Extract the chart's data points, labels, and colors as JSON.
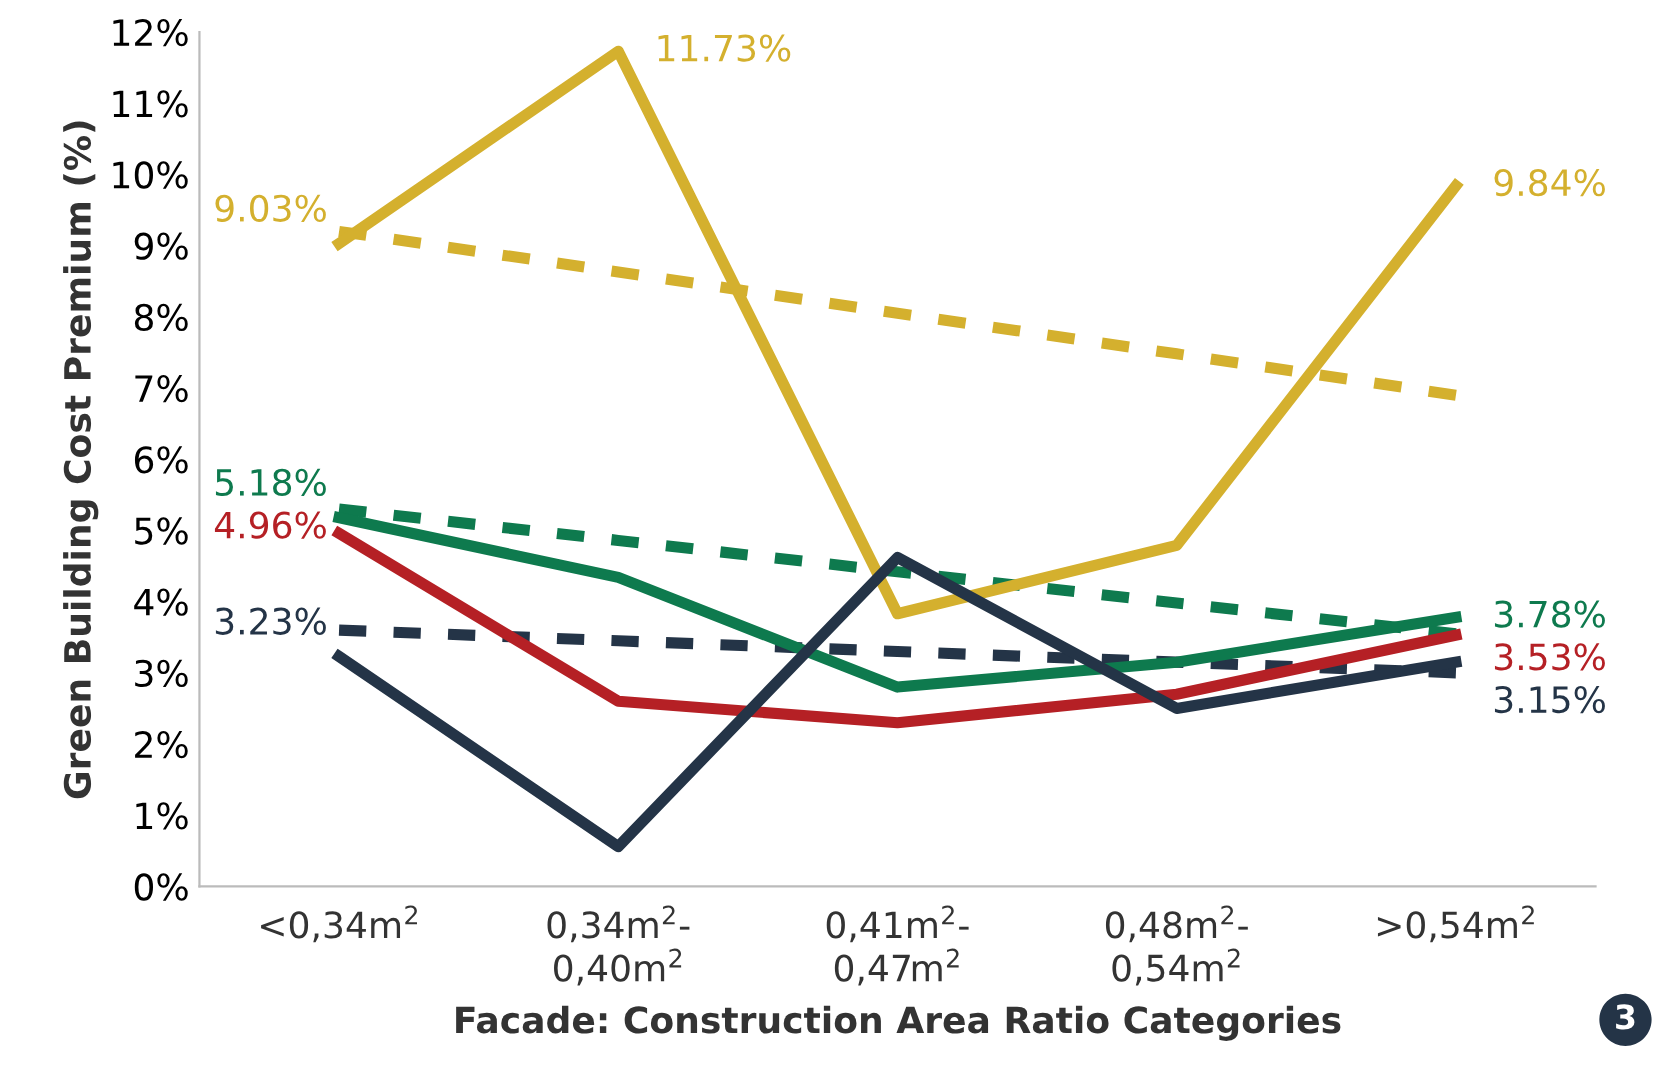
{
  "chart_data": {
    "type": "line",
    "xlabel": "Facade: Construction Area Ratio Categories",
    "ylabel": "Green Building Cost Premium (%)",
    "categories": [
      "<0,34m$^{2}$",
      "0,34m$^{2}$-\n0,40m$^{2}$",
      "0,41m$^{2}$-\n0,47m$^{2}$",
      "0,48m$^{2}$-\n0,54m$^{2}$",
      ">0,54m$^{2}$"
    ],
    "ylim": [
      0,
      12
    ],
    "yticks": [
      {
        "value": 0,
        "label": "0%"
      },
      {
        "value": 1,
        "label": "1%"
      },
      {
        "value": 2,
        "label": "2%"
      },
      {
        "value": 3,
        "label": "3%"
      },
      {
        "value": 4,
        "label": "4%"
      },
      {
        "value": 5,
        "label": "5%"
      },
      {
        "value": 6,
        "label": "6%"
      },
      {
        "value": 7,
        "label": "7%"
      },
      {
        "value": 8,
        "label": "8%"
      },
      {
        "value": 9,
        "label": "9%"
      },
      {
        "value": 10,
        "label": "10%"
      },
      {
        "value": 11,
        "label": "11%"
      },
      {
        "value": 12,
        "label": "12%"
      }
    ],
    "grid": false,
    "legend": false,
    "marker": "none",
    "series": [
      {
        "color": "#d4b02e",
        "line_style": "dashed",
        "values": [
          9.2,
          8.63,
          8.05,
          7.48,
          6.9
        ]
      },
      {
        "color": "#0e7a4e",
        "line_style": "dashed",
        "values": [
          5.3,
          4.86,
          4.42,
          3.98,
          3.55
        ]
      },
      {
        "color": "#243447",
        "line_style": "dashed",
        "values": [
          3.6,
          3.45,
          3.3,
          3.15,
          3.0
        ]
      },
      {
        "color": "#d4b02e",
        "line_style": "solid",
        "values": [
          9.03,
          11.73,
          3.83,
          4.79,
          9.84
        ],
        "value_labels": [
          "9.03%",
          "11.73%",
          null,
          null,
          "9.84%"
        ]
      },
      {
        "color": "#0e7a4e",
        "line_style": "solid",
        "values": [
          5.18,
          4.34,
          2.8,
          3.15,
          3.78
        ],
        "value_labels": [
          "5.18%",
          null,
          null,
          null,
          "3.78%"
        ]
      },
      {
        "color": "#b52025",
        "line_style": "solid",
        "values": [
          4.96,
          2.6,
          2.3,
          2.7,
          3.53
        ],
        "value_labels": [
          "4.96%",
          null,
          null,
          null,
          "3.53%"
        ]
      },
      {
        "color": "#243447",
        "line_style": "solid",
        "values": [
          3.23,
          0.56,
          4.62,
          2.5,
          3.15
        ],
        "value_labels": [
          "3.23%",
          null,
          null,
          null,
          "3.15%"
        ]
      }
    ],
    "annotations": [
      "3"
    ]
  }
}
